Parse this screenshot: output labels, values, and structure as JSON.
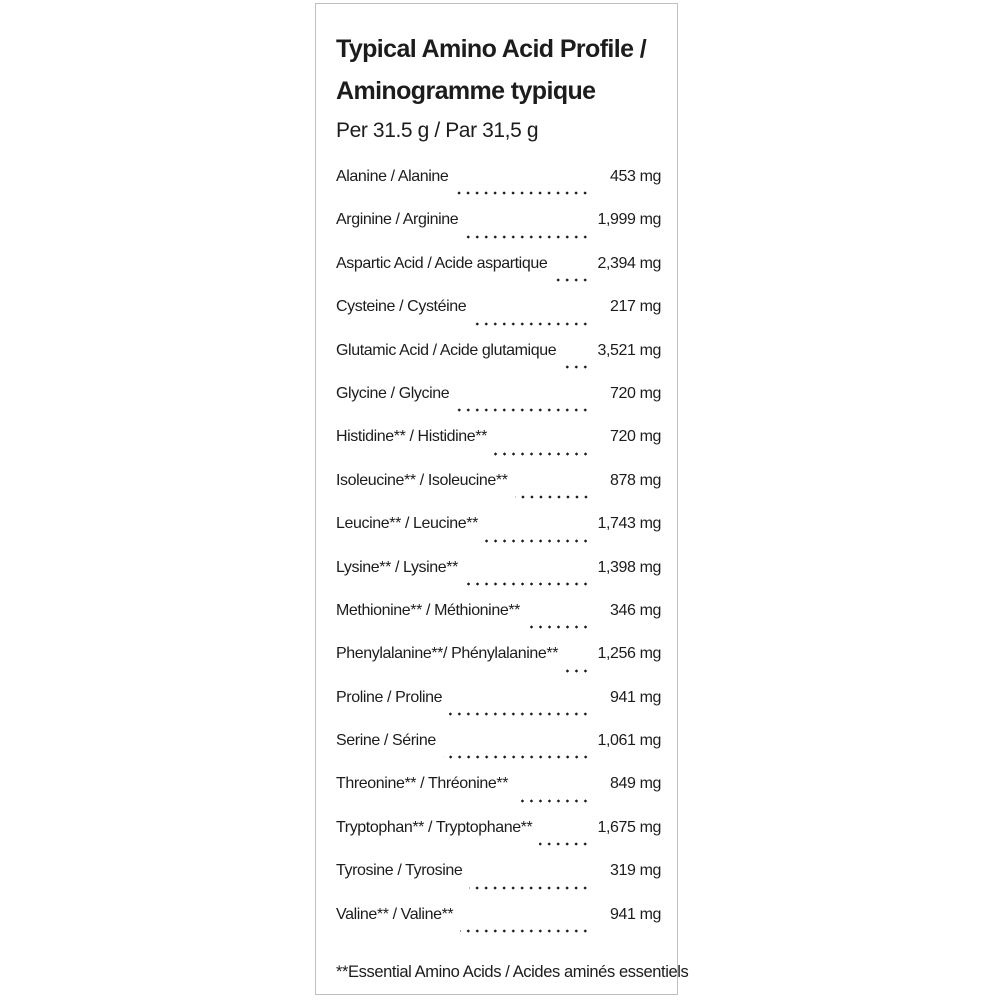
{
  "panel": {
    "title_line1": "Typical Amino Acid Profile /",
    "title_line2": "Aminogramme typique",
    "serving": "Per 31.5 g / Par 31,5 g",
    "footnote": "**Essential Amino Acids / Acides aminés essentiels",
    "colors": {
      "text": "#1c1c1c",
      "border": "#bdbfc1",
      "background": "#ffffff"
    }
  },
  "table": {
    "unit": "mg",
    "rows": [
      {
        "label": "Alanine / Alanine",
        "value": "453 mg"
      },
      {
        "label": "Arginine / Arginine",
        "value": "1,999 mg"
      },
      {
        "label": "Aspartic Acid / Acide aspartique",
        "value": "2,394 mg"
      },
      {
        "label": "Cysteine / Cystéine",
        "value": "217 mg"
      },
      {
        "label": "Glutamic Acid / Acide glutamique",
        "value": "3,521 mg"
      },
      {
        "label": "Glycine / Glycine",
        "value": "720 mg"
      },
      {
        "label": "Histidine** / Histidine**",
        "value": "720 mg"
      },
      {
        "label": "Isoleucine** / Isoleucine**",
        "value": "878 mg"
      },
      {
        "label": "Leucine** / Leucine**",
        "value": "1,743 mg"
      },
      {
        "label": "Lysine** / Lysine**",
        "value": "1,398 mg"
      },
      {
        "label": "Methionine** / Méthionine**",
        "value": "346 mg"
      },
      {
        "label": "Phenylalanine**/ Phénylalanine**",
        "value": "1,256 mg"
      },
      {
        "label": "Proline / Proline",
        "value": "941 mg"
      },
      {
        "label": "Serine / Sérine",
        "value": "1,061 mg"
      },
      {
        "label": "Threonine** / Thréonine**",
        "value": "849 mg"
      },
      {
        "label": "Tryptophan** / Tryptophane**",
        "value": "1,675 mg"
      },
      {
        "label": "Tyrosine / Tyrosine",
        "value": "319 mg"
      },
      {
        "label": "Valine** / Valine**",
        "value": "941 mg"
      }
    ]
  }
}
